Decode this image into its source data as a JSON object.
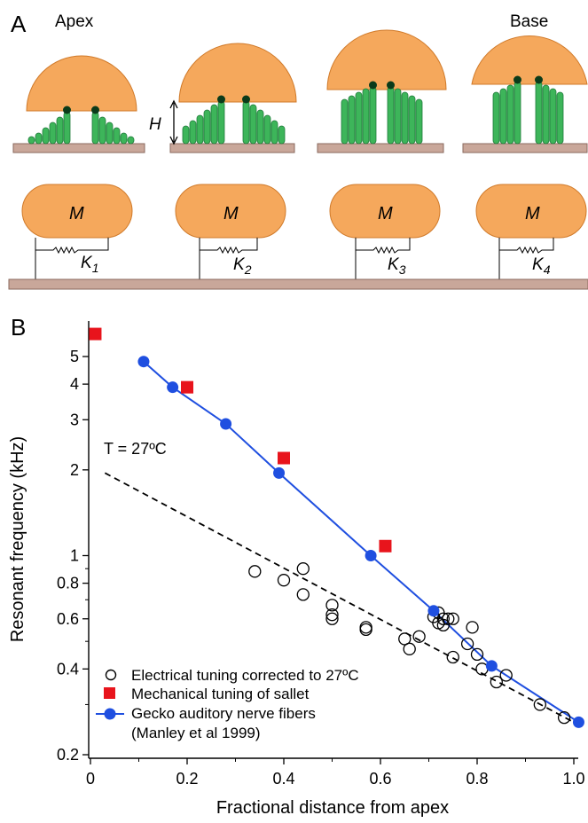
{
  "panel_a": {
    "label": "A",
    "apex_label": "Apex",
    "base_label": "Base",
    "height_label": "H",
    "mass_labels": [
      "M",
      "M",
      "M",
      "M"
    ],
    "spring_labels": [
      "K1",
      "K2",
      "K3",
      "K4"
    ],
    "colors": {
      "tectorial": "#f5a85c",
      "bundle": "#3db55a",
      "bundle_edge": "#1f7a3a",
      "tip": "#0b3b1a",
      "membrane": "#c9a79a",
      "membrane_edge": "#8a6a5e"
    }
  },
  "panel_b": {
    "label": "B",
    "temperature_note": "T = 27ºC"
  },
  "chart_data": {
    "type": "scatter",
    "xlabel": "Fractional distance from apex",
    "ylabel": "Resonant frequency (kHz)",
    "xlim": [
      0,
      1.0
    ],
    "ylim": [
      0.2,
      6.2
    ],
    "yscale": "log",
    "xticks": [
      "0",
      "0.2",
      "0.4",
      "0.6",
      "0.8",
      "1.0"
    ],
    "yticks": [
      "0.2",
      "0.4",
      "0.6",
      "0.8",
      "1",
      "2",
      "3",
      "4",
      "5"
    ],
    "grid": false,
    "legend_position": "bottom-left",
    "series": [
      {
        "name": "Electrical tuning corrected to 27ºC",
        "marker": "open-circle",
        "color": "#000000",
        "x": [
          0.34,
          0.4,
          0.44,
          0.44,
          0.5,
          0.5,
          0.5,
          0.57,
          0.57,
          0.65,
          0.66,
          0.68,
          0.71,
          0.72,
          0.72,
          0.73,
          0.73,
          0.74,
          0.75,
          0.75,
          0.78,
          0.79,
          0.8,
          0.81,
          0.84,
          0.86,
          0.93,
          0.98
        ],
        "y": [
          0.88,
          0.82,
          0.9,
          0.73,
          0.67,
          0.62,
          0.6,
          0.56,
          0.55,
          0.51,
          0.47,
          0.52,
          0.61,
          0.58,
          0.63,
          0.6,
          0.57,
          0.6,
          0.6,
          0.44,
          0.49,
          0.56,
          0.45,
          0.4,
          0.36,
          0.38,
          0.3,
          0.27
        ],
        "trend_line": {
          "style": "dashed",
          "x": [
            0.03,
            1.0
          ],
          "y": [
            1.95,
            0.26
          ]
        }
      },
      {
        "name": "Mechanical tuning of sallet",
        "marker": "filled-square",
        "color": "#e8141c",
        "x": [
          0.01,
          0.2,
          0.4,
          0.61
        ],
        "y": [
          6.0,
          3.9,
          2.2,
          1.08
        ]
      },
      {
        "name": "Gecko auditory nerve fibers",
        "name_line2": "(Manley et al 1999)",
        "marker": "filled-circle-line",
        "color": "#1f4fe0",
        "x": [
          0.11,
          0.17,
          0.28,
          0.39,
          0.58,
          0.71,
          0.83,
          1.01
        ],
        "y": [
          4.8,
          3.9,
          2.9,
          1.95,
          1.0,
          0.64,
          0.41,
          0.26
        ]
      }
    ]
  }
}
